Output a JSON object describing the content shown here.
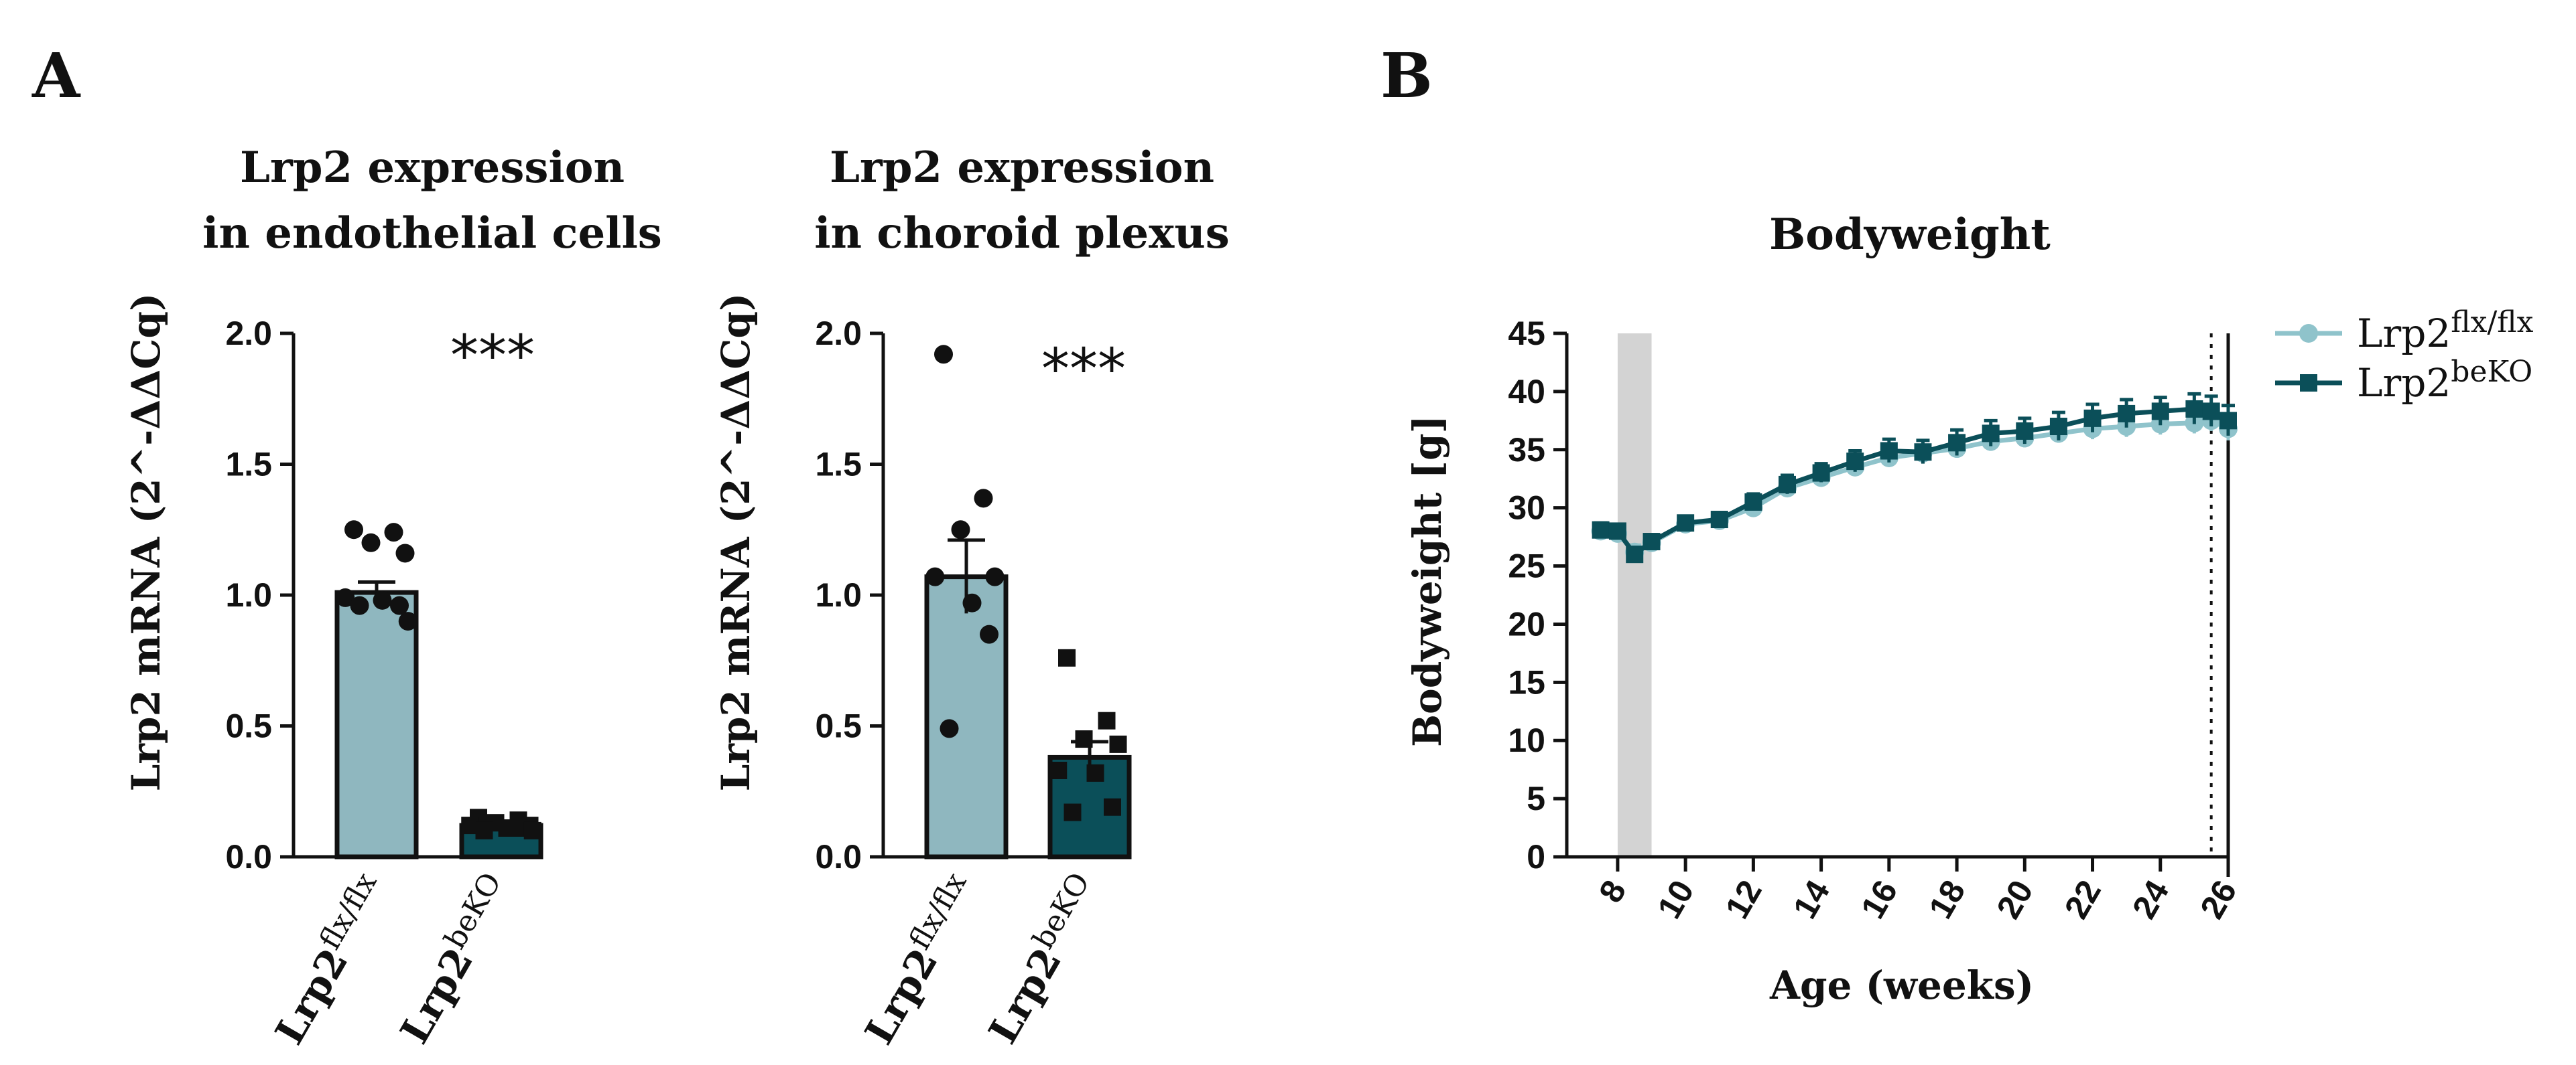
{
  "colors": {
    "flx": "#8fb7bf",
    "flx_line": "#8fc3cb",
    "beko": "#0b4f59",
    "shade": "#d3d3d3",
    "ink": "#111111"
  },
  "panels": {
    "a_label": "A",
    "b_label": "B"
  },
  "chart_data": [
    {
      "type": "bar",
      "title": [
        "Lrp2 expression",
        "in endothelial cells"
      ],
      "xlabel": "",
      "ylabel": "Lrp2 mRNA (2^-ΔΔCq)",
      "ylim": [
        0,
        2.0
      ],
      "yticks": [
        "0.0",
        "0.5",
        "1.0",
        "1.5",
        "2.0"
      ],
      "categories": [
        {
          "base": "Lrp2",
          "sup": "flx/flx"
        },
        {
          "base": "Lrp2",
          "sup": "beKO"
        }
      ],
      "values": [
        1.01,
        0.12
      ],
      "errors": [
        0.04,
        0.01
      ],
      "points": [
        [
          1.25,
          1.24,
          1.2,
          1.16,
          0.99,
          0.98,
          0.96,
          0.96,
          0.9
        ],
        [
          0.15,
          0.14,
          0.13,
          0.12,
          0.12,
          0.11,
          0.11,
          0.1,
          0.1
        ]
      ],
      "markers": [
        "circle",
        "square"
      ],
      "significance": "***"
    },
    {
      "type": "bar",
      "title": [
        "Lrp2 expression",
        "in choroid plexus"
      ],
      "xlabel": "",
      "ylabel": "Lrp2 mRNA (2^-ΔΔCq)",
      "ylim": [
        0,
        2.0
      ],
      "yticks": [
        "0.0",
        "0.5",
        "1.0",
        "1.5",
        "2.0"
      ],
      "categories": [
        {
          "base": "Lrp2",
          "sup": "flx/flx"
        },
        {
          "base": "Lrp2",
          "sup": "beKO"
        }
      ],
      "values": [
        1.07,
        0.38
      ],
      "errors": [
        0.14,
        0.06
      ],
      "points": [
        [
          1.92,
          1.37,
          1.25,
          1.07,
          1.07,
          0.97,
          0.85,
          0.49
        ],
        [
          0.76,
          0.52,
          0.45,
          0.43,
          0.33,
          0.32,
          0.19,
          0.17
        ]
      ],
      "markers": [
        "circle",
        "square"
      ],
      "significance": "***"
    },
    {
      "type": "line",
      "title": "Bodyweight",
      "xlabel": "Age (weeks)",
      "ylabel": "Bodyweight [g]",
      "ylim": [
        0,
        45
      ],
      "xlim": [
        6.5,
        26
      ],
      "yticks": [
        "0",
        "5",
        "10",
        "15",
        "20",
        "25",
        "30",
        "35",
        "40",
        "45"
      ],
      "xticks": [
        "8",
        "10",
        "12",
        "14",
        "16",
        "18",
        "20",
        "22",
        "24",
        "26"
      ],
      "shaded_region": [
        8,
        9
      ],
      "dotted_line_x": 25.5,
      "series": [
        {
          "name": {
            "base": "Lrp2",
            "sup": "flx/flx"
          },
          "marker": "circle",
          "x": [
            7.5,
            8,
            8.5,
            9,
            10,
            11,
            12,
            13,
            14,
            15,
            16,
            17,
            18,
            19,
            20,
            21,
            22,
            23,
            24,
            25,
            25.5,
            26
          ],
          "y": [
            28.0,
            27.8,
            26.2,
            27.0,
            28.6,
            28.9,
            30.0,
            31.7,
            32.6,
            33.5,
            34.3,
            34.7,
            35.1,
            35.7,
            36.0,
            36.4,
            36.8,
            37.0,
            37.2,
            37.3,
            37.5,
            36.8
          ],
          "err": [
            0.6,
            0.6,
            0.6,
            0.6,
            0.5,
            0.5,
            0.6,
            0.7,
            0.7,
            0.7,
            0.7,
            0.7,
            0.8,
            0.8,
            0.8,
            0.8,
            0.9,
            0.9,
            0.9,
            0.9,
            0.9,
            1.0
          ]
        },
        {
          "name": {
            "base": "Lrp2",
            "sup": "beKO"
          },
          "marker": "square",
          "x": [
            7.5,
            8,
            8.5,
            9,
            10,
            11,
            12,
            13,
            14,
            15,
            16,
            17,
            18,
            19,
            20,
            21,
            22,
            23,
            24,
            25,
            25.5,
            26
          ],
          "y": [
            28.1,
            28.0,
            26.0,
            27.1,
            28.7,
            29.0,
            30.5,
            32.0,
            33.0,
            34.0,
            34.9,
            34.8,
            35.6,
            36.4,
            36.6,
            37.0,
            37.7,
            38.1,
            38.3,
            38.5,
            38.3,
            37.5
          ],
          "err": [
            0.6,
            0.6,
            0.6,
            0.6,
            0.5,
            0.6,
            0.7,
            0.8,
            0.8,
            0.9,
            1.0,
            1.0,
            1.1,
            1.1,
            1.1,
            1.2,
            1.2,
            1.2,
            1.2,
            1.3,
            1.3,
            1.3
          ]
        }
      ],
      "legend": "top-right"
    }
  ]
}
